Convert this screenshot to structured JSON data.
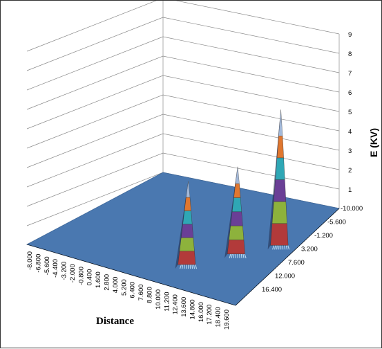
{
  "chart_data": {
    "type": "surface-3d",
    "title": "",
    "xlabel": "Distance",
    "ylabel": "",
    "zlabel": "E (KV)",
    "x_ticks": [
      "-8.000",
      "-6.800",
      "-5.600",
      "-4.400",
      "-3.200",
      "-2.000",
      "-0.800",
      "0.400",
      "1.600",
      "2.800",
      "4.000",
      "5.200",
      "6.400",
      "7.600",
      "8.800",
      "10.000",
      "11.200",
      "12.400",
      "13.600",
      "14.800",
      "16.000",
      "17.200",
      "18.400",
      "19.600"
    ],
    "y_ticks": [
      "-10.000",
      "-5.600",
      "-1.200",
      "3.200",
      "7.600",
      "12.000",
      "16.400"
    ],
    "z_ticks": [
      "1",
      "2",
      "3",
      "4",
      "5",
      "6",
      "7",
      "8",
      "9"
    ],
    "zlim": [
      0,
      9
    ],
    "grid": true,
    "legend": "none",
    "peaks": [
      {
        "x": 9.0,
        "y": 12.0,
        "z": 4.3
      },
      {
        "x": 11.5,
        "y": 5.5,
        "z": 4.5
      },
      {
        "x": 13.8,
        "y": 0.0,
        "z": 7.0
      }
    ],
    "colors": {
      "floor": "#4a78b0",
      "band1": "#b23a3a",
      "band2": "#8db23c",
      "band3": "#6a3f96",
      "band4": "#2fa7b5",
      "band5": "#e0772f",
      "top": "#a3b9d9"
    }
  }
}
